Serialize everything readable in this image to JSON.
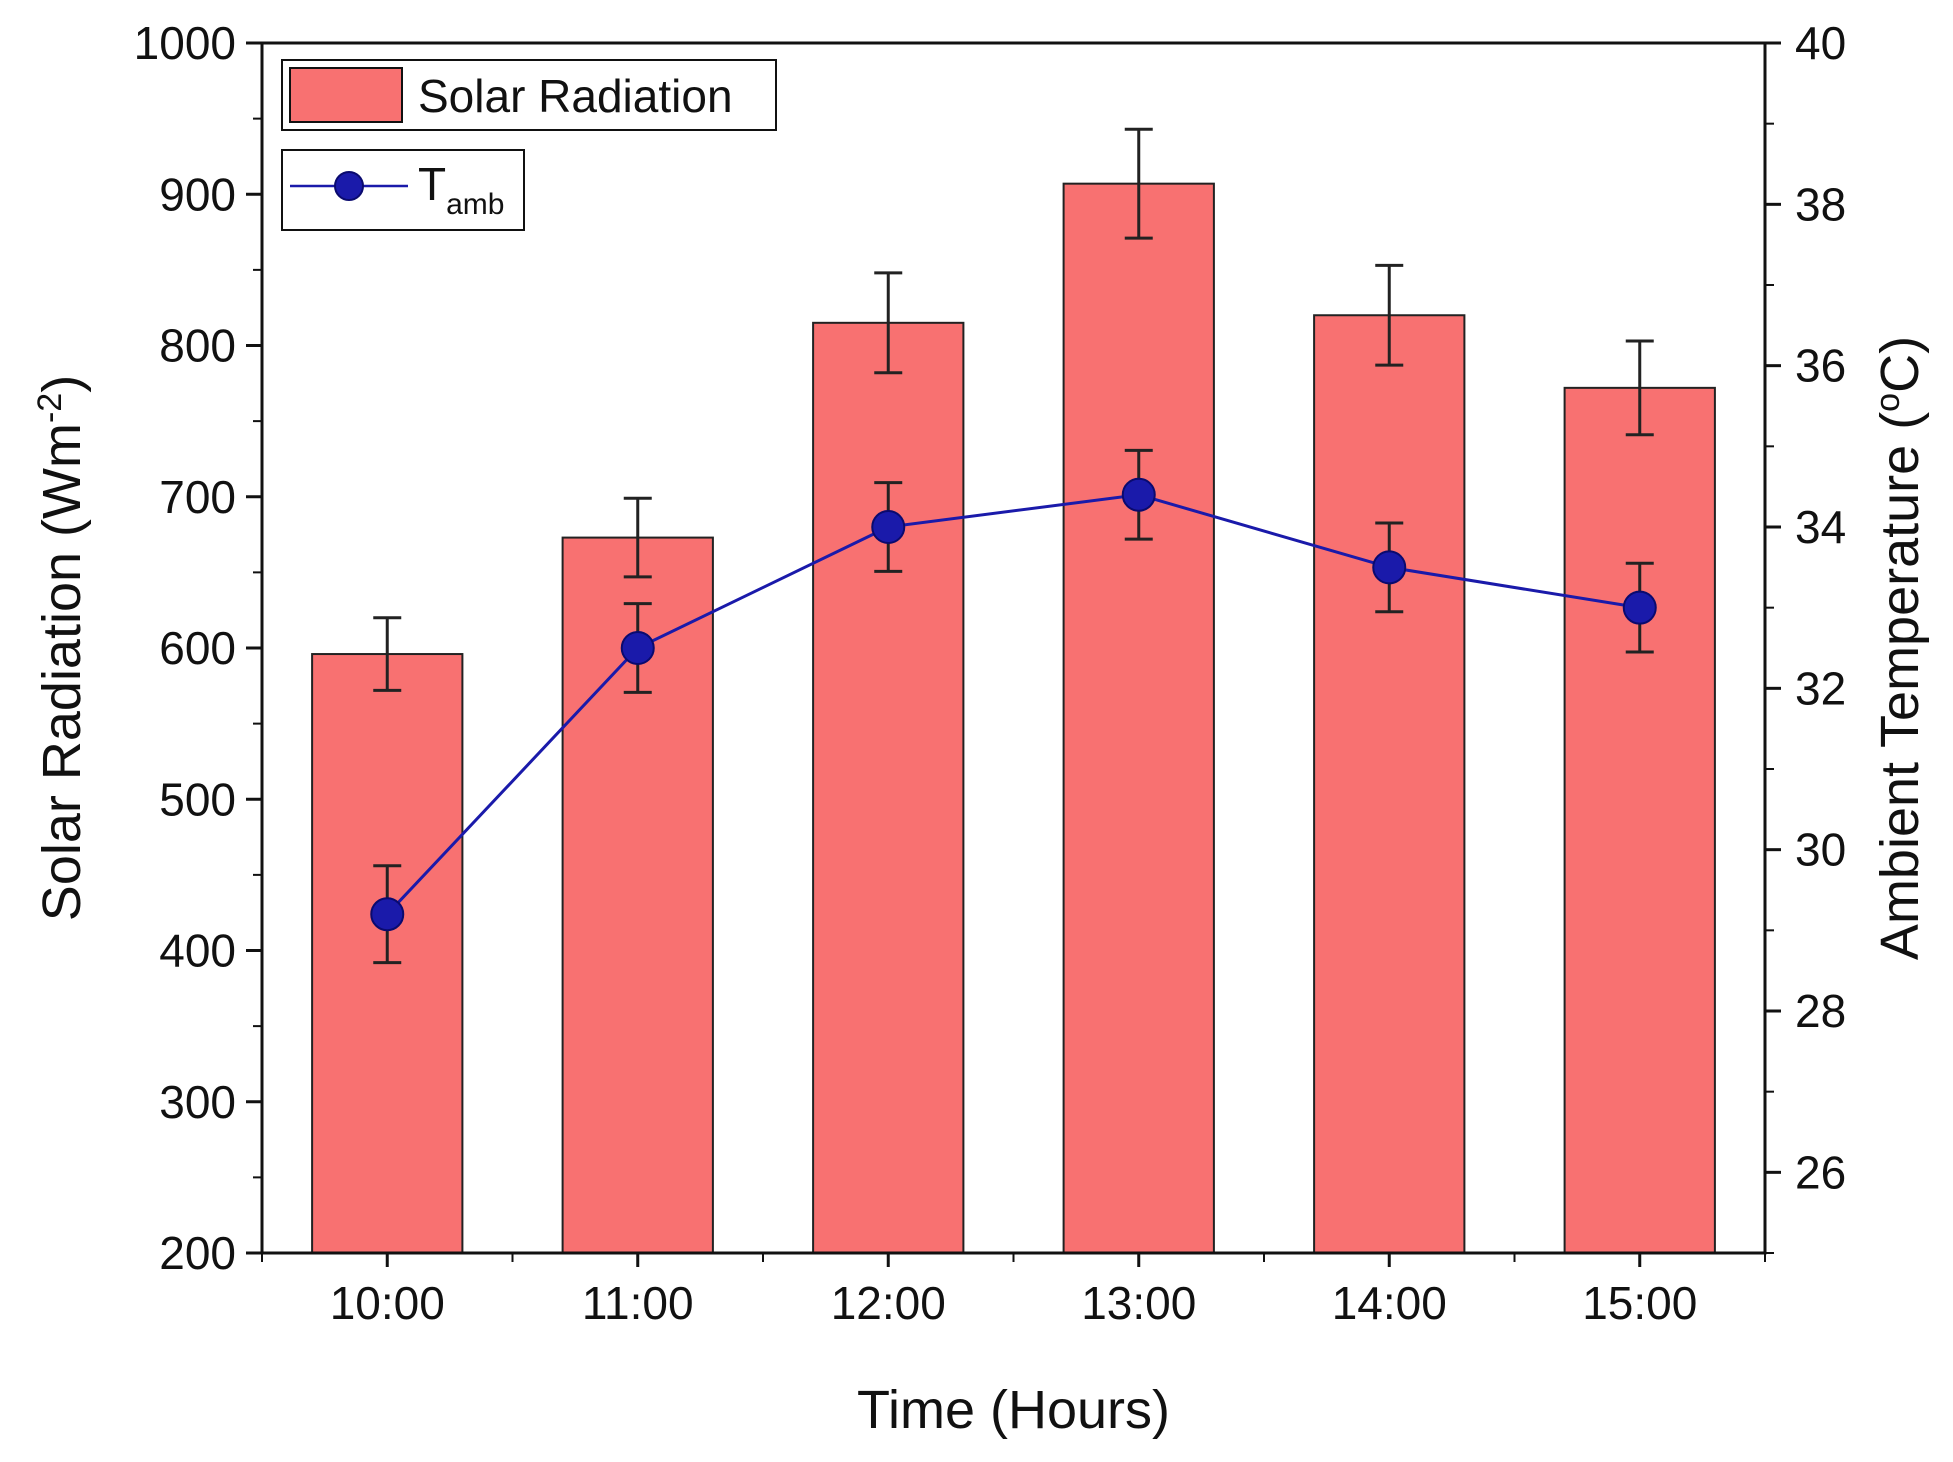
{
  "chart_data": {
    "type": "bar",
    "categories": [
      "10:00",
      "11:00",
      "12:00",
      "13:00",
      "14:00",
      "15:00"
    ],
    "xlabel": "Time (Hours)",
    "ylabel": "Solar Radiation (Wm",
    "ylabel_sup": "-2",
    "ylabel_close": ")",
    "ylim": [
      200,
      1000
    ],
    "yticks": [
      200,
      300,
      400,
      500,
      600,
      700,
      800,
      900,
      1000
    ],
    "y2label": "Ambient Temperature (",
    "y2label_sup": "o",
    "y2label_close": "C)",
    "y2lim": [
      25,
      40
    ],
    "y2ticks": [
      26,
      28,
      30,
      32,
      34,
      36,
      38,
      40
    ],
    "grid": false,
    "legend_position": "top-left",
    "series": [
      {
        "name": "Solar Radiation",
        "type": "bar",
        "axis": "left",
        "values": [
          596,
          673,
          815,
          907,
          820,
          772
        ],
        "errors": [
          24,
          26,
          33,
          36,
          33,
          31
        ],
        "color": "#f87171"
      },
      {
        "name": "T",
        "name_sub": "amb",
        "type": "line",
        "axis": "right",
        "values": [
          29.2,
          32.5,
          34.0,
          34.4,
          33.5,
          33.0
        ],
        "errors": [
          0.6,
          0.55,
          0.55,
          0.55,
          0.55,
          0.55
        ],
        "color": "#1a1aaa"
      }
    ]
  }
}
